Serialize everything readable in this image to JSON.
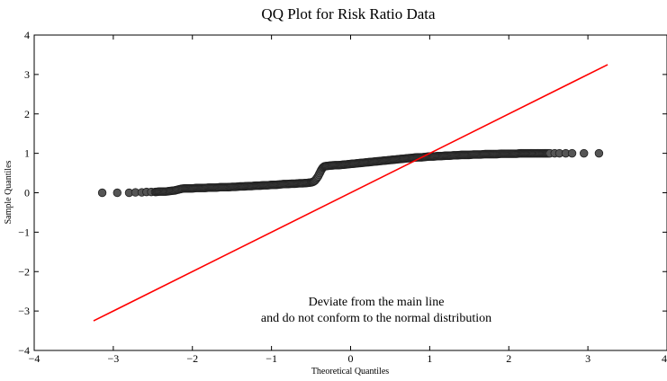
{
  "chart_data": {
    "type": "scatter",
    "title": "QQ Plot for Risk Ratio Data",
    "xlabel": "Theoretical Quantiles",
    "ylabel": "Sample Quantiles",
    "xlim": [
      -4,
      4
    ],
    "ylim": [
      -4,
      4
    ],
    "x_ticks": [
      -4,
      -3,
      -2,
      -1,
      0,
      1,
      2,
      3,
      4
    ],
    "y_ticks": [
      -4,
      -3,
      -2,
      -1,
      0,
      1,
      2,
      3,
      4
    ],
    "x_tick_labels": [
      "−4",
      "−3",
      "−2",
      "−1",
      "0",
      "1",
      "2",
      "3",
      "4"
    ],
    "y_tick_labels": [
      "−4",
      "−3",
      "−2",
      "−1",
      "0",
      "1",
      "2",
      "3",
      "4"
    ],
    "grid": false,
    "reference_line": {
      "color": "#ff0000",
      "x": [
        -3.25,
        3.25
      ],
      "y": [
        -3.25,
        3.25
      ]
    },
    "points": {
      "color": "#555555",
      "description_of_shape": "sample quantiles near 0 for theoretical < -0.4, jump to ~0.65 near -0.35, then rising slowly to ~1.0",
      "x": [
        -3.14,
        -2.95,
        -2.8,
        -2.72,
        -2.64,
        -2.58,
        -2.52,
        -2.47,
        -2.42,
        -2.38,
        -2.34,
        -2.3,
        -2.26,
        -2.22,
        -2.18,
        -2.14,
        -2.1,
        -2.05,
        -2.0,
        -1.95,
        -1.9,
        -1.85,
        -1.8,
        -1.75,
        -1.7,
        -1.65,
        -1.6,
        -1.55,
        -1.5,
        -1.45,
        -1.4,
        -1.35,
        -1.3,
        -1.25,
        -1.2,
        -1.15,
        -1.1,
        -1.05,
        -1.0,
        -0.95,
        -0.9,
        -0.85,
        -0.8,
        -0.75,
        -0.7,
        -0.65,
        -0.6,
        -0.55,
        -0.5,
        -0.47,
        -0.45,
        -0.43,
        -0.41,
        -0.39,
        -0.37,
        -0.35,
        -0.33,
        -0.3,
        -0.25,
        -0.2,
        -0.15,
        -0.1,
        -0.05,
        0.0,
        0.05,
        0.1,
        0.15,
        0.2,
        0.25,
        0.3,
        0.35,
        0.4,
        0.45,
        0.5,
        0.55,
        0.6,
        0.65,
        0.7,
        0.75,
        0.8,
        0.85,
        0.9,
        0.95,
        1.0,
        1.05,
        1.1,
        1.15,
        1.2,
        1.25,
        1.3,
        1.35,
        1.4,
        1.45,
        1.5,
        1.55,
        1.6,
        1.65,
        1.7,
        1.75,
        1.8,
        1.85,
        1.9,
        1.95,
        2.0,
        2.05,
        2.1,
        2.15,
        2.2,
        2.25,
        2.3,
        2.34,
        2.38,
        2.42,
        2.47,
        2.52,
        2.58,
        2.64,
        2.72,
        2.8,
        2.95,
        3.14
      ],
      "y": [
        0.0,
        0.0,
        0.0,
        0.01,
        0.01,
        0.02,
        0.02,
        0.02,
        0.03,
        0.03,
        0.03,
        0.04,
        0.05,
        0.06,
        0.08,
        0.1,
        0.11,
        0.11,
        0.11,
        0.12,
        0.12,
        0.12,
        0.13,
        0.13,
        0.13,
        0.14,
        0.14,
        0.14,
        0.15,
        0.15,
        0.16,
        0.16,
        0.17,
        0.17,
        0.18,
        0.18,
        0.19,
        0.19,
        0.2,
        0.2,
        0.21,
        0.22,
        0.22,
        0.23,
        0.23,
        0.24,
        0.24,
        0.25,
        0.26,
        0.28,
        0.31,
        0.36,
        0.42,
        0.5,
        0.58,
        0.64,
        0.67,
        0.68,
        0.69,
        0.7,
        0.7,
        0.71,
        0.72,
        0.73,
        0.74,
        0.75,
        0.76,
        0.77,
        0.78,
        0.79,
        0.8,
        0.81,
        0.82,
        0.83,
        0.84,
        0.85,
        0.86,
        0.87,
        0.88,
        0.89,
        0.9,
        0.9,
        0.91,
        0.92,
        0.92,
        0.93,
        0.93,
        0.94,
        0.94,
        0.95,
        0.95,
        0.96,
        0.96,
        0.96,
        0.97,
        0.97,
        0.97,
        0.98,
        0.98,
        0.98,
        0.98,
        0.99,
        0.99,
        0.99,
        0.99,
        0.99,
        1.0,
        1.0,
        1.0,
        1.0,
        1.0,
        1.0,
        1.0,
        1.0,
        1.0,
        1.0,
        1.0,
        1.0,
        1.0,
        1.0,
        1.0
      ]
    },
    "annotations": [
      "Deviate from the main line",
      "and do not conform to the normal distribution"
    ]
  }
}
